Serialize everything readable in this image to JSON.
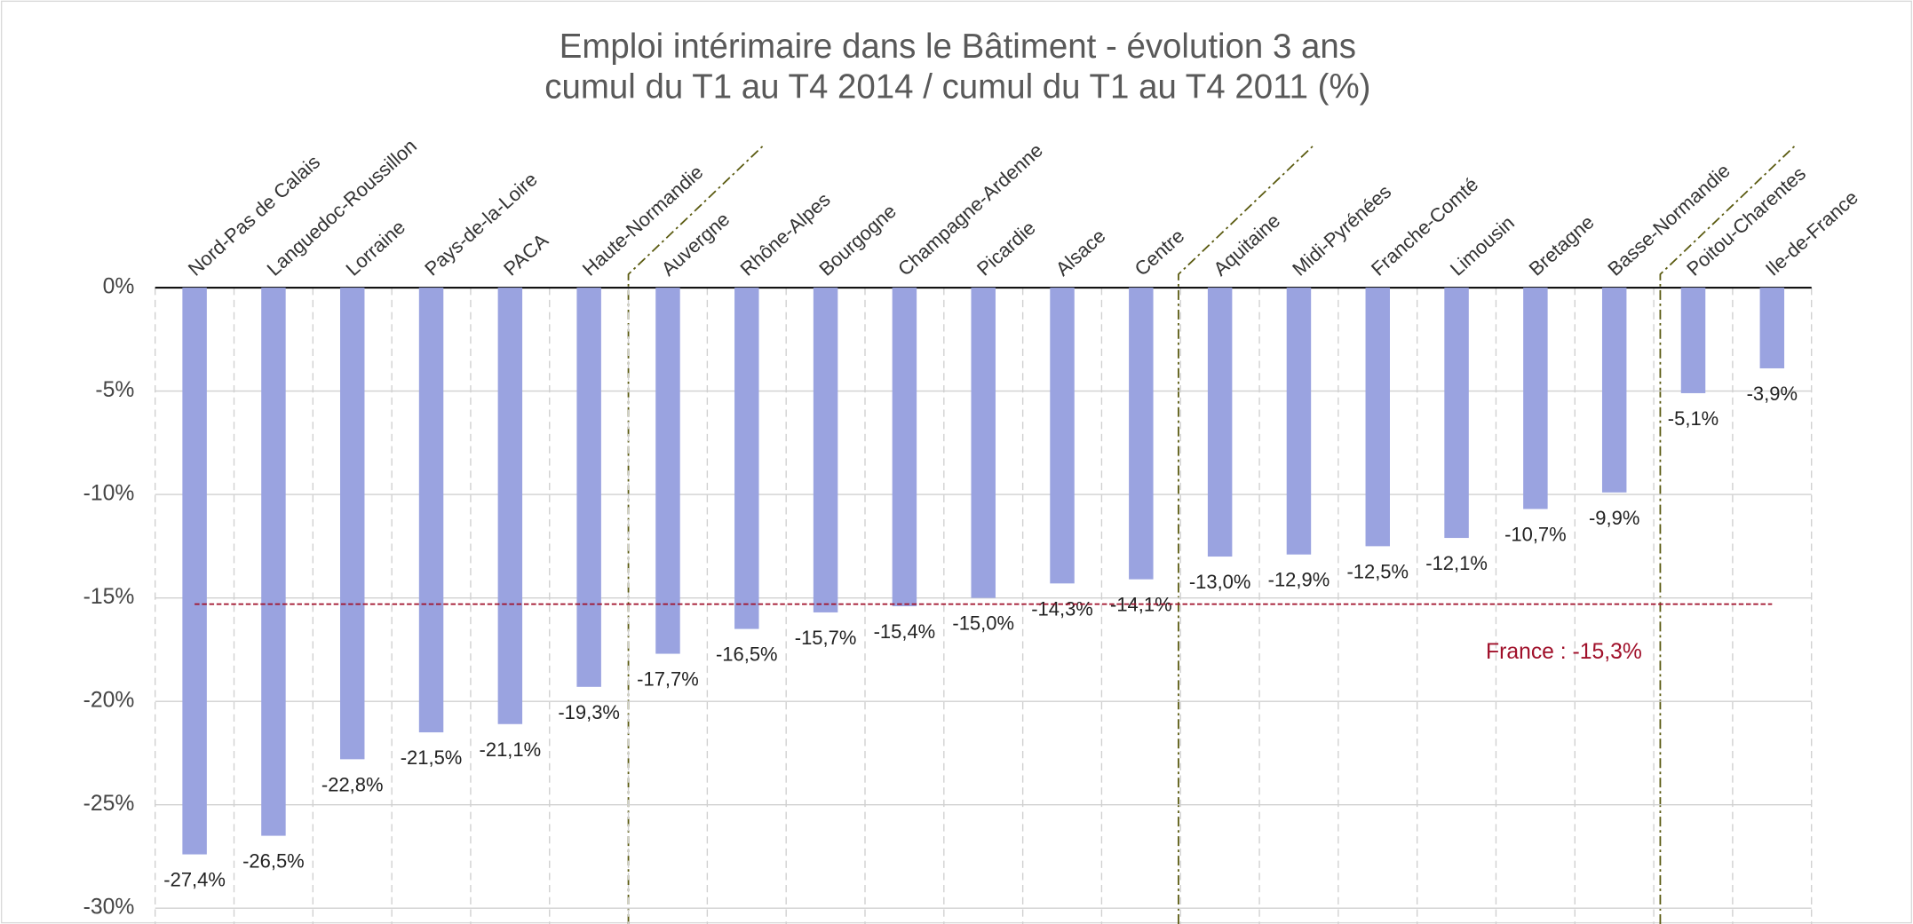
{
  "chart_data": {
    "type": "bar",
    "title": "Emploi intérimaire dans le Bâtiment - évolution 3 ans",
    "subtitle": "cumul du T1 au T4 2014 / cumul du T1 au T4 2011 (%)",
    "categories": [
      "Nord-Pas de Calais",
      "Languedoc-Roussillon",
      "Lorraine",
      "Pays-de-la-Loire",
      "PACA",
      "Haute-Normandie",
      "Auvergne",
      "Rhône-Alpes",
      "Bourgogne",
      "Champagne-Ardenne",
      "Picardie",
      "Alsace",
      "Centre",
      "Aquitaine",
      "Midi-Pyrénées",
      "Franche-Comté",
      "Limousin",
      "Bretagne",
      "Basse-Normandie",
      "Poitou-Charentes",
      "Ile-de-France"
    ],
    "values": [
      -27.4,
      -26.5,
      -22.8,
      -21.5,
      -21.1,
      -19.3,
      -17.7,
      -16.5,
      -15.7,
      -15.4,
      -15.0,
      -14.3,
      -14.1,
      -13.0,
      -12.9,
      -12.5,
      -12.1,
      -10.7,
      -9.9,
      -5.1,
      -3.9
    ],
    "value_labels": [
      "-27,4%",
      "-26,5%",
      "-22,8%",
      "-21,5%",
      "-21,1%",
      "-19,3%",
      "-17,7%",
      "-16,5%",
      "-15,7%",
      "-15,4%",
      "-15,0%",
      "-14,3%",
      "-14,1%",
      "-13,0%",
      "-12,9%",
      "-12,5%",
      "-12,1%",
      "-10,7%",
      "-9,9%",
      "-5,1%",
      "-3,9%"
    ],
    "color": "#9aa3e0",
    "ylim": [
      -30,
      0
    ],
    "yticks": [
      {
        "value": 0,
        "label": "0%"
      },
      {
        "value": -5,
        "label": "-5%"
      },
      {
        "value": -10,
        "label": "-10%"
      },
      {
        "value": -15,
        "label": "-15%"
      },
      {
        "value": -20,
        "label": "-20%"
      },
      {
        "value": -25,
        "label": "-25%"
      },
      {
        "value": -30,
        "label": "-30%"
      }
    ],
    "grid": true,
    "reference_line": {
      "value": -15.3,
      "label": "France : -15,3%",
      "color": "#a0102a"
    }
  }
}
